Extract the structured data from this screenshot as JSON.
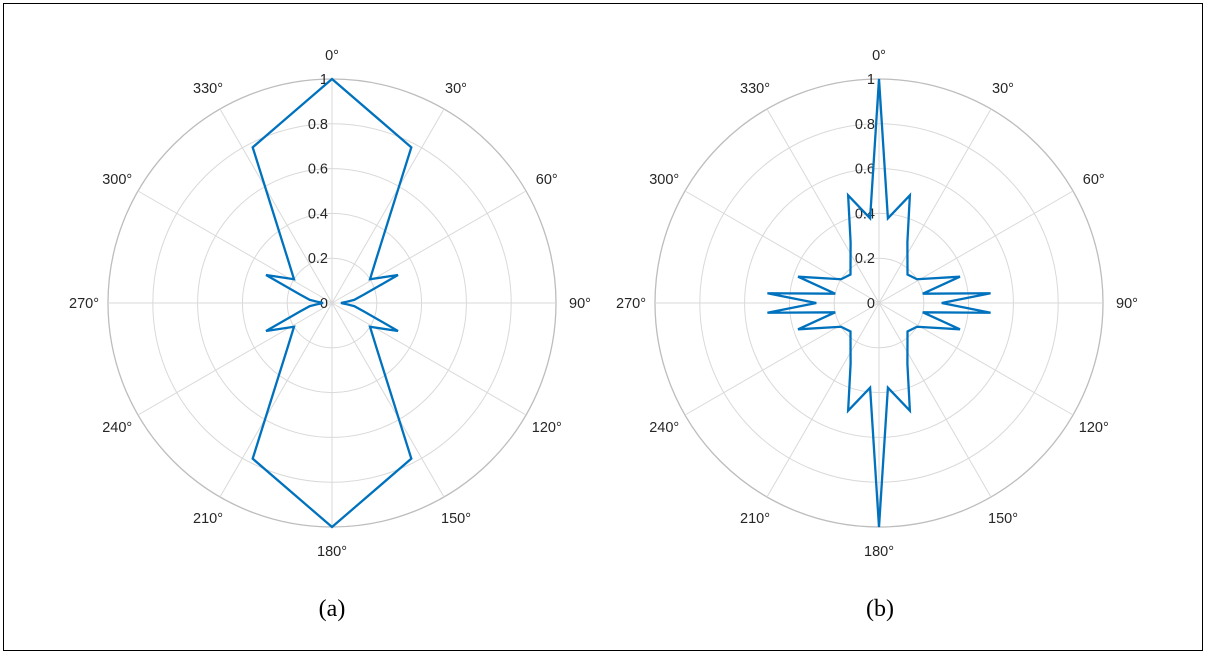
{
  "figure": {
    "colors": {
      "series": "#0072BD",
      "grid": "#d9d9d9",
      "outer": "#bdbdbd",
      "text": "#262626"
    }
  },
  "chart_data": [
    {
      "type": "polar",
      "caption": "(a)",
      "theta_unit": "deg",
      "theta_zero": "top",
      "theta_direction": "clockwise",
      "theta_ticks": [
        "0°",
        "30°",
        "60°",
        "90°",
        "120°",
        "150°",
        "180°",
        "210°",
        "240°",
        "270°",
        "300°",
        "330°"
      ],
      "r_ticks": [
        "0",
        "0.2",
        "0.4",
        "0.6",
        "0.8",
        "1"
      ],
      "rlim": [
        0,
        1
      ],
      "grid": true,
      "series": [
        {
          "points": [
            [
              0,
              1.0
            ],
            [
              27,
              0.78
            ],
            [
              45,
              0.28
            ],
            [
              58,
              0.2
            ],
            [
              67,
              0.32
            ],
            [
              75,
              0.15
            ],
            [
              82,
              0.1
            ],
            [
              86,
              0.06
            ],
            [
              90,
              0.04
            ],
            [
              94,
              0.06
            ],
            [
              98,
              0.1
            ],
            [
              105,
              0.15
            ],
            [
              113,
              0.32
            ],
            [
              122,
              0.2
            ],
            [
              135,
              0.28
            ],
            [
              153,
              0.78
            ],
            [
              180,
              1.0
            ],
            [
              207,
              0.78
            ],
            [
              225,
              0.28
            ],
            [
              238,
              0.2
            ],
            [
              247,
              0.32
            ],
            [
              255,
              0.15
            ],
            [
              262,
              0.1
            ],
            [
              266,
              0.06
            ],
            [
              270,
              0.04
            ],
            [
              274,
              0.06
            ],
            [
              278,
              0.1
            ],
            [
              285,
              0.15
            ],
            [
              293,
              0.32
            ],
            [
              302,
              0.2
            ],
            [
              315,
              0.28
            ],
            [
              333,
              0.78
            ],
            [
              360,
              1.0
            ]
          ]
        }
      ]
    },
    {
      "type": "polar",
      "caption": "(b)",
      "theta_unit": "deg",
      "theta_zero": "top",
      "theta_direction": "clockwise",
      "theta_ticks": [
        "0°",
        "30°",
        "60°",
        "90°",
        "120°",
        "150°",
        "180°",
        "210°",
        "240°",
        "270°",
        "300°",
        "330°"
      ],
      "r_ticks": [
        "0",
        "0.2",
        "0.4",
        "0.6",
        "0.8",
        "1"
      ],
      "rlim": [
        0,
        1
      ],
      "grid": true,
      "series": [
        {
          "points": [
            [
              0,
              1.0
            ],
            [
              6,
              0.38
            ],
            [
              16,
              0.5
            ],
            [
              25,
              0.3
            ],
            [
              45,
              0.18
            ],
            [
              58,
              0.2
            ],
            [
              72,
              0.38
            ],
            [
              78,
              0.2
            ],
            [
              85,
              0.5
            ],
            [
              90,
              0.28
            ],
            [
              95,
              0.5
            ],
            [
              102,
              0.2
            ],
            [
              108,
              0.38
            ],
            [
              122,
              0.2
            ],
            [
              135,
              0.18
            ],
            [
              155,
              0.3
            ],
            [
              164,
              0.5
            ],
            [
              174,
              0.38
            ],
            [
              180,
              1.0
            ],
            [
              186,
              0.38
            ],
            [
              196,
              0.5
            ],
            [
              205,
              0.3
            ],
            [
              225,
              0.18
            ],
            [
              238,
              0.2
            ],
            [
              252,
              0.38
            ],
            [
              258,
              0.2
            ],
            [
              265,
              0.5
            ],
            [
              270,
              0.28
            ],
            [
              275,
              0.5
            ],
            [
              282,
              0.2
            ],
            [
              288,
              0.38
            ],
            [
              302,
              0.2
            ],
            [
              315,
              0.18
            ],
            [
              335,
              0.3
            ],
            [
              344,
              0.5
            ],
            [
              354,
              0.38
            ],
            [
              360,
              1.0
            ]
          ]
        }
      ]
    }
  ]
}
